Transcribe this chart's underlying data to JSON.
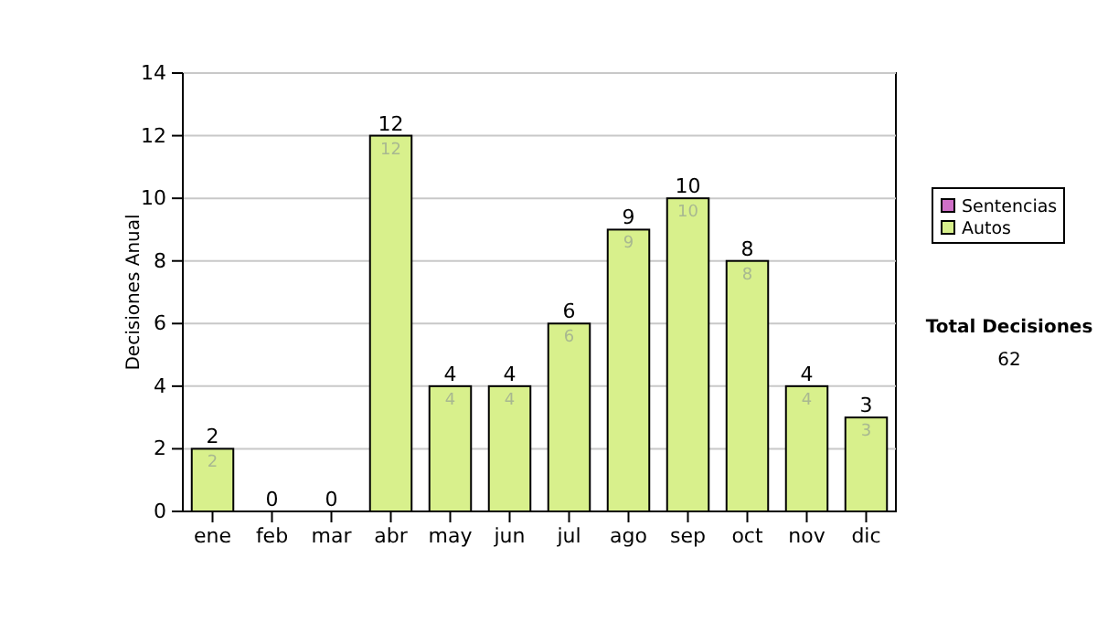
{
  "chart_data": {
    "type": "bar",
    "stacked": true,
    "ylabel": "Decisiones Anual",
    "categories": [
      "ene",
      "feb",
      "mar",
      "abr",
      "may",
      "jun",
      "jul",
      "ago",
      "sep",
      "oct",
      "nov",
      "dic"
    ],
    "series": [
      {
        "name": "Sentencias",
        "color": "#d070c8",
        "values": [
          0,
          0,
          0,
          0,
          0,
          0,
          0,
          0,
          0,
          0,
          0,
          0
        ]
      },
      {
        "name": "Autos",
        "color": "#d8f08c",
        "values": [
          2,
          0,
          0,
          12,
          4,
          4,
          6,
          9,
          10,
          8,
          4,
          3
        ],
        "value_labels": [
          "2",
          null,
          null,
          "12",
          "4",
          "4",
          "6",
          "9",
          "10",
          "8",
          "4",
          "3"
        ]
      }
    ],
    "totals": [
      "2",
      "0",
      "0",
      "12",
      "4",
      "4",
      "6",
      "9",
      "10",
      "8",
      "4",
      "3"
    ],
    "ylim": [
      0,
      14
    ],
    "yticks": [
      0,
      2,
      4,
      6,
      8,
      10,
      12,
      14
    ],
    "grid": "y",
    "legend": "right",
    "annotations": [
      "Total Decisiones",
      "62"
    ]
  }
}
